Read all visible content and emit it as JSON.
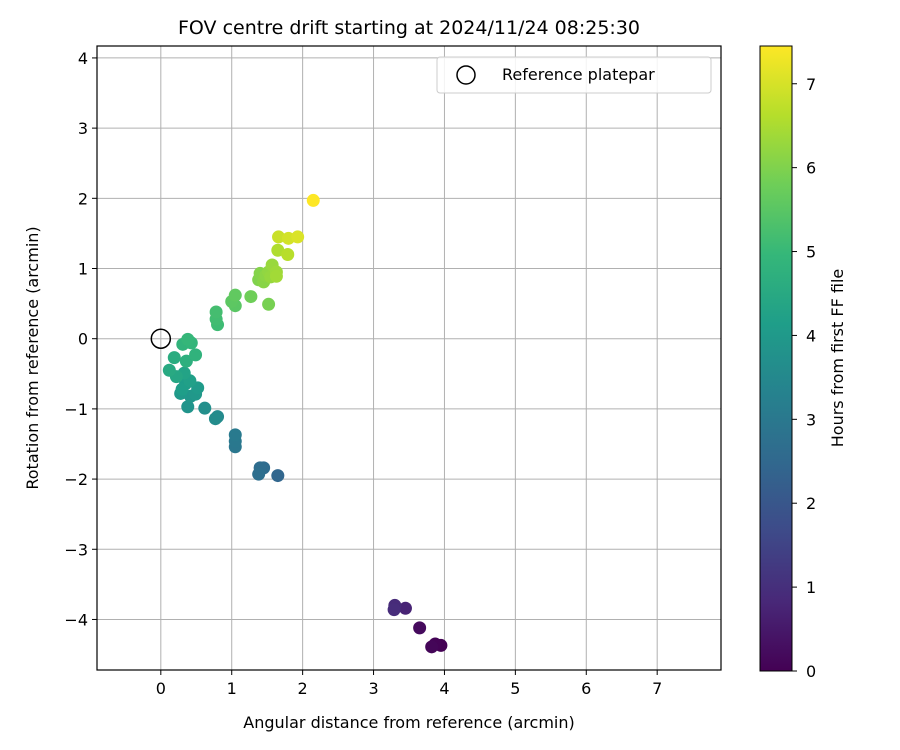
{
  "chart_data": {
    "type": "scatter",
    "title": "FOV centre drift starting at 2024/11/24 08:25:30",
    "xlabel": "Angular distance from reference (arcmin)",
    "ylabel": "Rotation from reference (arcmin)",
    "xlim": [
      -0.9,
      7.9
    ],
    "ylim": [
      -4.72,
      4.17
    ],
    "xticks": [
      0,
      1,
      2,
      3,
      4,
      5,
      6,
      7
    ],
    "yticks": [
      -4,
      -3,
      -2,
      -1,
      0,
      1,
      2,
      3,
      4
    ],
    "grid": true,
    "legend": {
      "position": "top-right",
      "entries": [
        {
          "label": "Reference platepar",
          "marker": "open-circle"
        }
      ]
    },
    "reference_point": {
      "x": 0,
      "y": 0,
      "label": "Reference platepar"
    },
    "colorbar": {
      "label": "Hours from first FF file",
      "range": [
        0,
        7.45
      ],
      "ticks": [
        0,
        1,
        2,
        3,
        4,
        5,
        6,
        7
      ],
      "colormap": "viridis"
    },
    "points": [
      {
        "x": 3.95,
        "y": -4.37,
        "h": 0.0
      },
      {
        "x": 3.87,
        "y": -4.35,
        "h": 0.05
      },
      {
        "x": 3.82,
        "y": -4.39,
        "h": 0.1
      },
      {
        "x": 3.65,
        "y": -4.12,
        "h": 0.2
      },
      {
        "x": 3.45,
        "y": -3.84,
        "h": 0.75
      },
      {
        "x": 3.3,
        "y": -3.8,
        "h": 0.9
      },
      {
        "x": 3.29,
        "y": -3.86,
        "h": 0.95
      },
      {
        "x": 1.65,
        "y": -1.95,
        "h": 2.45
      },
      {
        "x": 1.45,
        "y": -1.84,
        "h": 2.6
      },
      {
        "x": 1.4,
        "y": -1.84,
        "h": 2.65
      },
      {
        "x": 1.38,
        "y": -1.93,
        "h": 2.7
      },
      {
        "x": 1.05,
        "y": -1.54,
        "h": 2.95
      },
      {
        "x": 1.05,
        "y": -1.46,
        "h": 3.0
      },
      {
        "x": 1.05,
        "y": -1.37,
        "h": 3.05
      },
      {
        "x": 0.8,
        "y": -1.11,
        "h": 3.55
      },
      {
        "x": 0.77,
        "y": -1.14,
        "h": 3.6
      },
      {
        "x": 0.62,
        "y": -0.99,
        "h": 3.7
      },
      {
        "x": 0.38,
        "y": -0.97,
        "h": 3.85
      },
      {
        "x": 0.42,
        "y": -0.82,
        "h": 3.9
      },
      {
        "x": 0.49,
        "y": -0.79,
        "h": 3.95
      },
      {
        "x": 0.28,
        "y": -0.78,
        "h": 4.0
      },
      {
        "x": 0.52,
        "y": -0.7,
        "h": 4.05
      },
      {
        "x": 0.35,
        "y": -0.64,
        "h": 4.1
      },
      {
        "x": 0.3,
        "y": -0.72,
        "h": 4.15
      },
      {
        "x": 0.41,
        "y": -0.6,
        "h": 4.2
      },
      {
        "x": 0.33,
        "y": -0.49,
        "h": 4.3
      },
      {
        "x": 0.22,
        "y": -0.54,
        "h": 4.4
      },
      {
        "x": 0.12,
        "y": -0.45,
        "h": 4.5
      },
      {
        "x": 0.19,
        "y": -0.27,
        "h": 4.6
      },
      {
        "x": 0.36,
        "y": -0.32,
        "h": 4.7
      },
      {
        "x": 0.49,
        "y": -0.23,
        "h": 4.8
      },
      {
        "x": 0.31,
        "y": -0.08,
        "h": 4.85
      },
      {
        "x": 0.43,
        "y": -0.06,
        "h": 4.9
      },
      {
        "x": 0.38,
        "y": -0.01,
        "h": 4.95
      },
      {
        "x": 0.8,
        "y": 0.2,
        "h": 5.1
      },
      {
        "x": 0.78,
        "y": 0.28,
        "h": 5.15
      },
      {
        "x": 0.78,
        "y": 0.38,
        "h": 5.2
      },
      {
        "x": 1.05,
        "y": 0.47,
        "h": 5.5
      },
      {
        "x": 1.0,
        "y": 0.53,
        "h": 5.55
      },
      {
        "x": 1.05,
        "y": 0.62,
        "h": 5.6
      },
      {
        "x": 1.27,
        "y": 0.6,
        "h": 5.8
      },
      {
        "x": 1.52,
        "y": 0.49,
        "h": 5.9
      },
      {
        "x": 1.38,
        "y": 0.84,
        "h": 6.0
      },
      {
        "x": 1.4,
        "y": 0.93,
        "h": 6.05
      },
      {
        "x": 1.45,
        "y": 0.81,
        "h": 6.1
      },
      {
        "x": 1.48,
        "y": 0.9,
        "h": 6.15
      },
      {
        "x": 1.52,
        "y": 0.95,
        "h": 6.2
      },
      {
        "x": 1.55,
        "y": 0.88,
        "h": 6.25
      },
      {
        "x": 1.57,
        "y": 1.05,
        "h": 6.3
      },
      {
        "x": 1.63,
        "y": 0.95,
        "h": 6.35
      },
      {
        "x": 1.63,
        "y": 0.89,
        "h": 6.4
      },
      {
        "x": 1.65,
        "y": 1.26,
        "h": 6.55
      },
      {
        "x": 1.79,
        "y": 1.2,
        "h": 6.65
      },
      {
        "x": 1.66,
        "y": 1.45,
        "h": 6.85
      },
      {
        "x": 1.8,
        "y": 1.43,
        "h": 6.95
      },
      {
        "x": 1.93,
        "y": 1.45,
        "h": 7.05
      },
      {
        "x": 2.15,
        "y": 1.97,
        "h": 7.45
      }
    ]
  }
}
